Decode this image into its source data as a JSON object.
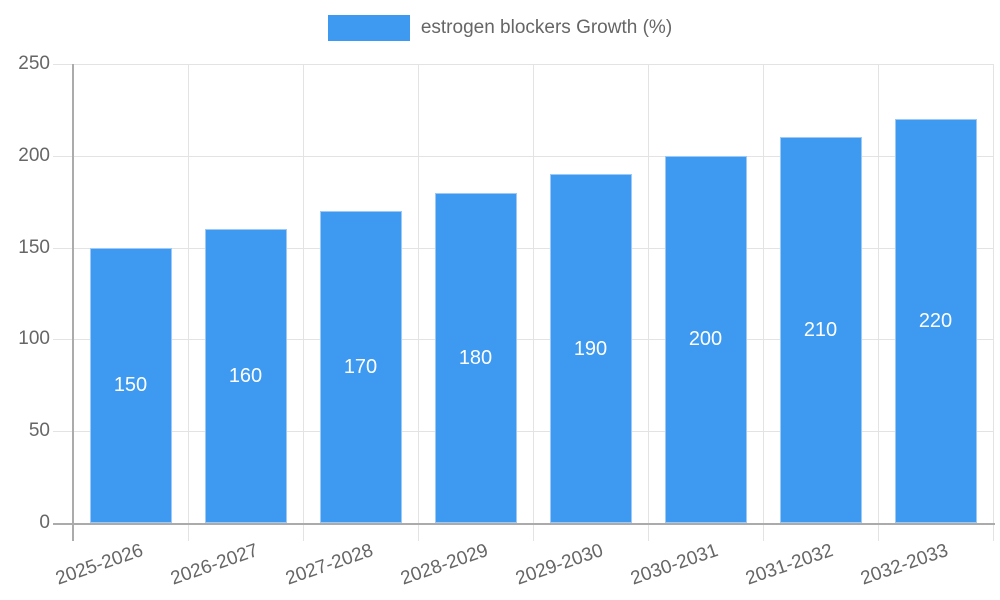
{
  "chart_data": {
    "type": "bar",
    "title": "",
    "legend_label": "estrogen blockers Growth (%)",
    "legend_position": "top",
    "categories": [
      "2025-2026",
      "2026-2027",
      "2027-2028",
      "2028-2029",
      "2029-2030",
      "2030-2031",
      "2031-2032",
      "2032-2033"
    ],
    "series": [
      {
        "name": "estrogen blockers Growth (%)",
        "values": [
          150,
          160,
          170,
          180,
          190,
          200,
          210,
          220
        ]
      }
    ],
    "value_labels": [
      "150",
      "160",
      "170",
      "180",
      "190",
      "200",
      "210",
      "220"
    ],
    "xlabel": "",
    "ylabel": "",
    "ylim": [
      0,
      250
    ],
    "yticks": [
      0,
      50,
      100,
      150,
      200,
      250
    ],
    "ytick_labels": [
      "0",
      "50",
      "100",
      "150",
      "200",
      "250"
    ],
    "grid": true,
    "colors": {
      "bar": "#3d9af0",
      "bar_edge": "#9cc9f5",
      "value_label": "#ffffff",
      "tick_text": "#666666",
      "gridline": "#e3e3e3",
      "axis_line": "#ababab",
      "background": "#ffffff"
    }
  }
}
